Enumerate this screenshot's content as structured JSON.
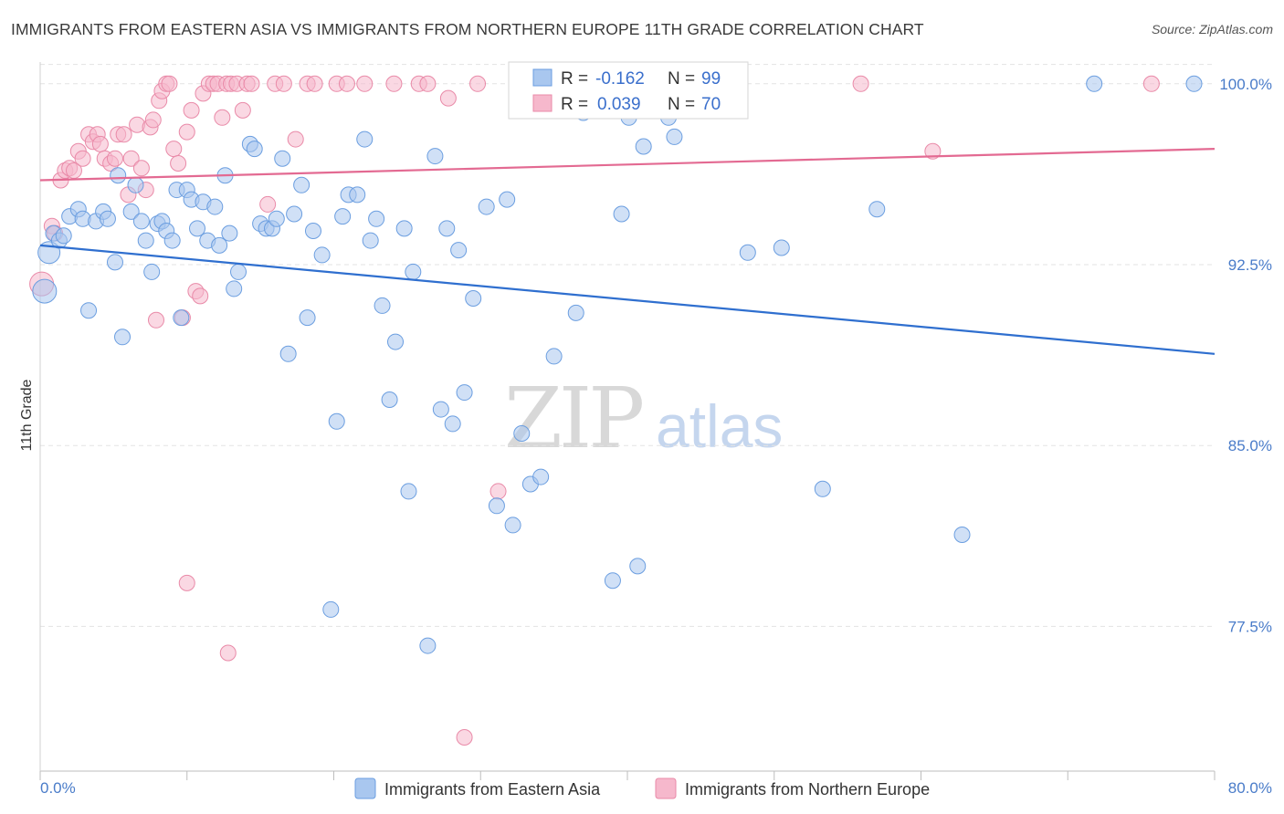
{
  "title": "IMMIGRANTS FROM EASTERN ASIA VS IMMIGRANTS FROM NORTHERN EUROPE 11TH GRADE CORRELATION CHART",
  "source": "Source: ZipAtlas.com",
  "watermark": {
    "part1": "ZIP",
    "part2": "atlas"
  },
  "legend_box": {
    "r_label": "R =",
    "n_label": "N =",
    "rows": [
      {
        "r": "-0.162",
        "n": "99"
      },
      {
        "r": "0.039",
        "n": "70"
      }
    ]
  },
  "colors": {
    "blue_fill": "#a9c7ef",
    "blue_stroke": "#6b9ee0",
    "blue_line": "#2f6fcf",
    "pink_fill": "#f6b8cc",
    "pink_stroke": "#e98aa8",
    "pink_line": "#e36a92",
    "tick_text": "#4a7cc9",
    "grid": "#e3e3e3"
  },
  "chart_data": {
    "type": "scatter",
    "title": "IMMIGRANTS FROM EASTERN ASIA VS IMMIGRANTS FROM NORTHERN EUROPE 11TH GRADE CORRELATION CHART",
    "xlabel": "",
    "ylabel": "11th Grade",
    "x_unit": "%",
    "xlim": [
      0,
      80
    ],
    "ylim": [
      71.5,
      100.9
    ],
    "x_tick_labels": [
      "0.0%",
      "80.0%"
    ],
    "y_ticks": [
      77.5,
      85.0,
      92.5,
      100.0
    ],
    "y_tick_labels": [
      "77.5%",
      "85.0%",
      "92.5%",
      "100.0%"
    ],
    "grid": true,
    "legend_position": "bottom",
    "series": [
      {
        "name": "Immigrants from Eastern Asia",
        "color": "#a9c7ef",
        "R": -0.162,
        "N": 99,
        "trend": {
          "x": [
            0,
            80
          ],
          "y": [
            93.3,
            88.8
          ]
        },
        "points": [
          [
            0.3,
            91.4
          ],
          [
            0.6,
            93.0
          ],
          [
            0.9,
            93.8
          ],
          [
            1.3,
            93.5
          ],
          [
            1.6,
            93.7
          ],
          [
            2.0,
            94.5
          ],
          [
            2.6,
            94.8
          ],
          [
            2.9,
            94.4
          ],
          [
            3.3,
            90.6
          ],
          [
            3.8,
            94.3
          ],
          [
            4.3,
            94.7
          ],
          [
            4.6,
            94.4
          ],
          [
            5.1,
            92.6
          ],
          [
            5.3,
            96.2
          ],
          [
            5.6,
            89.5
          ],
          [
            6.2,
            94.7
          ],
          [
            6.5,
            95.8
          ],
          [
            6.9,
            94.3
          ],
          [
            7.2,
            93.5
          ],
          [
            7.6,
            92.2
          ],
          [
            8.0,
            94.2
          ],
          [
            8.3,
            94.3
          ],
          [
            8.6,
            93.9
          ],
          [
            9.0,
            93.5
          ],
          [
            9.3,
            95.6
          ],
          [
            9.6,
            90.3
          ],
          [
            10.0,
            95.6
          ],
          [
            10.3,
            95.2
          ],
          [
            10.7,
            94.0
          ],
          [
            11.1,
            95.1
          ],
          [
            11.4,
            93.5
          ],
          [
            11.9,
            94.9
          ],
          [
            12.2,
            93.3
          ],
          [
            12.6,
            96.2
          ],
          [
            12.9,
            93.8
          ],
          [
            13.2,
            91.5
          ],
          [
            13.5,
            92.2
          ],
          [
            14.3,
            97.5
          ],
          [
            14.6,
            97.3
          ],
          [
            15.0,
            94.2
          ],
          [
            15.4,
            94.0
          ],
          [
            15.8,
            94.0
          ],
          [
            16.1,
            94.4
          ],
          [
            16.5,
            96.9
          ],
          [
            16.9,
            88.8
          ],
          [
            17.3,
            94.6
          ],
          [
            17.8,
            95.8
          ],
          [
            18.2,
            90.3
          ],
          [
            18.6,
            93.9
          ],
          [
            19.2,
            92.9
          ],
          [
            19.8,
            78.2
          ],
          [
            20.2,
            86.0
          ],
          [
            20.6,
            94.5
          ],
          [
            21.0,
            95.4
          ],
          [
            21.6,
            95.4
          ],
          [
            22.1,
            97.7
          ],
          [
            22.5,
            93.5
          ],
          [
            22.9,
            94.4
          ],
          [
            23.3,
            90.8
          ],
          [
            23.8,
            86.9
          ],
          [
            24.2,
            89.3
          ],
          [
            24.8,
            94.0
          ],
          [
            25.1,
            83.1
          ],
          [
            25.4,
            92.2
          ],
          [
            26.4,
            76.7
          ],
          [
            26.9,
            97.0
          ],
          [
            27.3,
            86.5
          ],
          [
            27.7,
            94.0
          ],
          [
            28.1,
            85.9
          ],
          [
            28.5,
            93.1
          ],
          [
            28.9,
            87.2
          ],
          [
            29.5,
            91.1
          ],
          [
            30.4,
            94.9
          ],
          [
            31.1,
            82.5
          ],
          [
            31.8,
            95.2
          ],
          [
            32.2,
            81.7
          ],
          [
            32.8,
            85.5
          ],
          [
            33.4,
            83.4
          ],
          [
            34.1,
            83.7
          ],
          [
            35.0,
            88.7
          ],
          [
            36.5,
            90.5
          ],
          [
            37.0,
            98.8
          ],
          [
            39.0,
            79.4
          ],
          [
            39.6,
            94.6
          ],
          [
            40.1,
            98.6
          ],
          [
            40.7,
            80.0
          ],
          [
            41.1,
            97.4
          ],
          [
            42.8,
            98.6
          ],
          [
            43.2,
            97.8
          ],
          [
            44.5,
            100.1
          ],
          [
            45.6,
            100.1
          ],
          [
            46.1,
            100.1
          ],
          [
            48.2,
            93.0
          ],
          [
            50.5,
            93.2
          ],
          [
            53.3,
            83.2
          ],
          [
            57.0,
            94.8
          ],
          [
            62.8,
            81.3
          ],
          [
            71.8,
            100.0
          ],
          [
            78.6,
            100.0
          ]
        ]
      },
      {
        "name": "Immigrants from Northern Europe",
        "color": "#f6b8cc",
        "R": 0.039,
        "N": 70,
        "trend": {
          "x": [
            0,
            80
          ],
          "y": [
            96.0,
            97.3
          ]
        },
        "points": [
          [
            0.1,
            91.7
          ],
          [
            0.8,
            94.1
          ],
          [
            1.0,
            93.8
          ],
          [
            1.4,
            96.0
          ],
          [
            1.7,
            96.4
          ],
          [
            2.0,
            96.5
          ],
          [
            2.3,
            96.4
          ],
          [
            2.6,
            97.2
          ],
          [
            2.9,
            96.9
          ],
          [
            3.3,
            97.9
          ],
          [
            3.6,
            97.6
          ],
          [
            3.9,
            97.9
          ],
          [
            4.1,
            97.5
          ],
          [
            4.4,
            96.9
          ],
          [
            4.8,
            96.7
          ],
          [
            5.1,
            96.9
          ],
          [
            5.3,
            97.9
          ],
          [
            5.7,
            97.9
          ],
          [
            6.0,
            95.4
          ],
          [
            6.2,
            96.9
          ],
          [
            6.6,
            98.3
          ],
          [
            6.9,
            96.5
          ],
          [
            7.2,
            95.6
          ],
          [
            7.5,
            98.2
          ],
          [
            7.7,
            98.5
          ],
          [
            7.9,
            90.2
          ],
          [
            8.1,
            99.3
          ],
          [
            8.3,
            99.7
          ],
          [
            8.6,
            100.0
          ],
          [
            8.8,
            100.0
          ],
          [
            9.1,
            97.3
          ],
          [
            9.4,
            96.7
          ],
          [
            9.7,
            90.3
          ],
          [
            10.0,
            98.0
          ],
          [
            10.3,
            98.9
          ],
          [
            10.6,
            91.4
          ],
          [
            10.9,
            91.2
          ],
          [
            11.1,
            99.6
          ],
          [
            11.5,
            100.0
          ],
          [
            11.8,
            100.0
          ],
          [
            12.1,
            100.0
          ],
          [
            12.4,
            98.6
          ],
          [
            12.7,
            100.0
          ],
          [
            13.0,
            100.0
          ],
          [
            13.4,
            100.0
          ],
          [
            13.8,
            98.9
          ],
          [
            14.1,
            100.0
          ],
          [
            14.4,
            100.0
          ],
          [
            15.5,
            95.0
          ],
          [
            16.0,
            100.0
          ],
          [
            16.6,
            100.0
          ],
          [
            17.4,
            97.7
          ],
          [
            18.2,
            100.0
          ],
          [
            18.7,
            100.0
          ],
          [
            20.2,
            100.0
          ],
          [
            20.9,
            100.0
          ],
          [
            22.1,
            100.0
          ],
          [
            24.1,
            100.0
          ],
          [
            25.8,
            100.0
          ],
          [
            26.4,
            100.0
          ],
          [
            27.8,
            99.4
          ],
          [
            28.9,
            72.9
          ],
          [
            29.8,
            100.0
          ],
          [
            31.2,
            83.1
          ],
          [
            33.7,
            100.0
          ],
          [
            55.9,
            100.0
          ],
          [
            60.8,
            97.2
          ],
          [
            75.7,
            100.0
          ],
          [
            12.8,
            76.4
          ],
          [
            10.0,
            79.3
          ]
        ]
      }
    ]
  },
  "bottom_legend": [
    {
      "label": "Immigrants from Eastern Asia"
    },
    {
      "label": "Immigrants from Northern Europe"
    }
  ]
}
